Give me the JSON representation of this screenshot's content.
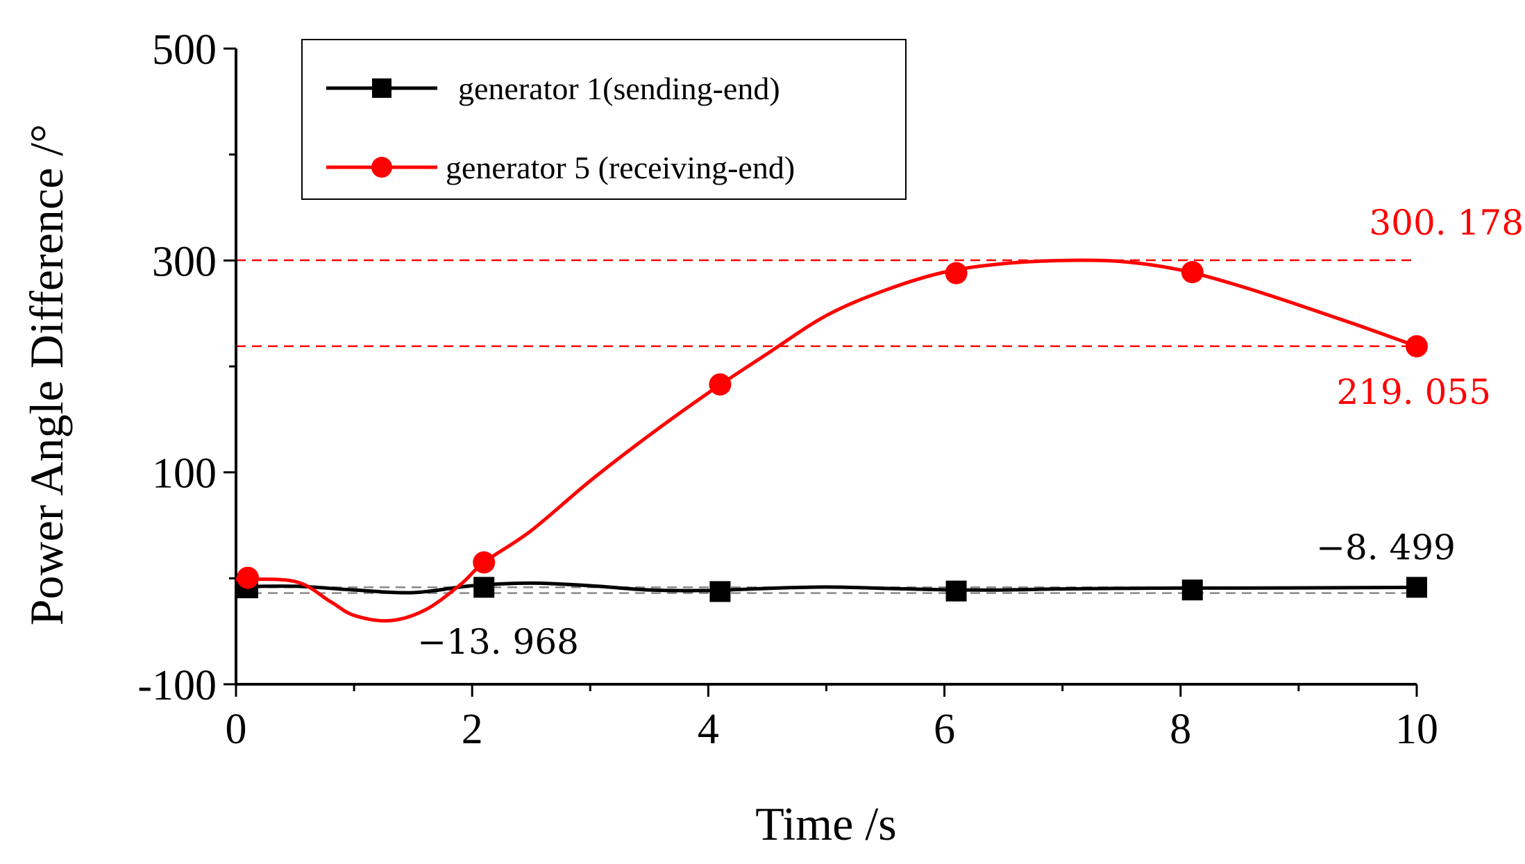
{
  "chart_data": {
    "type": "line",
    "title": "",
    "xlabel": "Time /s",
    "ylabel": "Power Angle Difference /°",
    "xlim": [
      0,
      10
    ],
    "ylim": [
      -100,
      500
    ],
    "x_ticks": [
      "0",
      "2",
      "4",
      "6",
      "8",
      "10"
    ],
    "y_ticks": [
      "-100",
      "100",
      "300",
      "500"
    ],
    "grid": false,
    "legend_position": "top-left",
    "series": [
      {
        "name": "generator 1(sending-end)",
        "color": "#000000",
        "marker": "square",
        "marker_x": [
          0.1,
          2.1,
          4.1,
          6.1,
          8.1,
          10
        ],
        "marker_y": [
          -9,
          -8.5,
          -12.5,
          -12,
          -11,
          -8.5
        ],
        "curve_x": [
          0,
          0.5,
          1,
          1.5,
          2,
          2.5,
          3,
          3.5,
          4,
          4.5,
          5,
          5.5,
          6,
          6.5,
          7,
          7.5,
          8,
          8.5,
          9,
          9.5,
          10
        ],
        "curve_y": [
          -8,
          -7.5,
          -11,
          -13.5,
          -7,
          -4.5,
          -7,
          -11,
          -11.5,
          -9.5,
          -8.2,
          -9.5,
          -10.8,
          -11,
          -10,
          -9.5,
          -9.2,
          -9.2,
          -9,
          -8.8,
          -8.5
        ]
      },
      {
        "name": "generator 5 (receiving-end)",
        "color": "#ff0000",
        "marker": "circle",
        "marker_x": [
          0.1,
          2.1,
          4.1,
          6.1,
          8.1,
          10
        ],
        "marker_y": [
          0.5,
          15,
          183,
          288,
          289,
          219
        ],
        "curve_x": [
          0,
          0.5,
          0.8,
          1,
          1.3,
          1.6,
          1.9,
          2.1,
          2.5,
          3,
          3.5,
          4,
          4.5,
          5,
          5.5,
          6,
          6.5,
          7,
          7.5,
          8,
          8.5,
          9,
          9.5,
          10
        ],
        "curve_y": [
          -1,
          -3,
          -22,
          -35,
          -40,
          -30,
          -6,
          15,
          45,
          92,
          135,
          175,
          212,
          248,
          272,
          289,
          297,
          300,
          299,
          291,
          276,
          258,
          239,
          219
        ]
      }
    ],
    "reference_lines": [
      {
        "y": 300.178,
        "color": "#ff0000"
      },
      {
        "y": 219.055,
        "color": "#ff0000"
      },
      {
        "y": -8.499,
        "color": "#888888"
      },
      {
        "y": -13.968,
        "color": "#888888"
      }
    ],
    "annotations": [
      {
        "text": "300. 178",
        "color": "#ff0000"
      },
      {
        "text": "219. 055",
        "color": "#ff0000"
      },
      {
        "text": "−8. 499",
        "color": "#000000"
      },
      {
        "text": "−13. 968",
        "color": "#000000"
      }
    ]
  }
}
